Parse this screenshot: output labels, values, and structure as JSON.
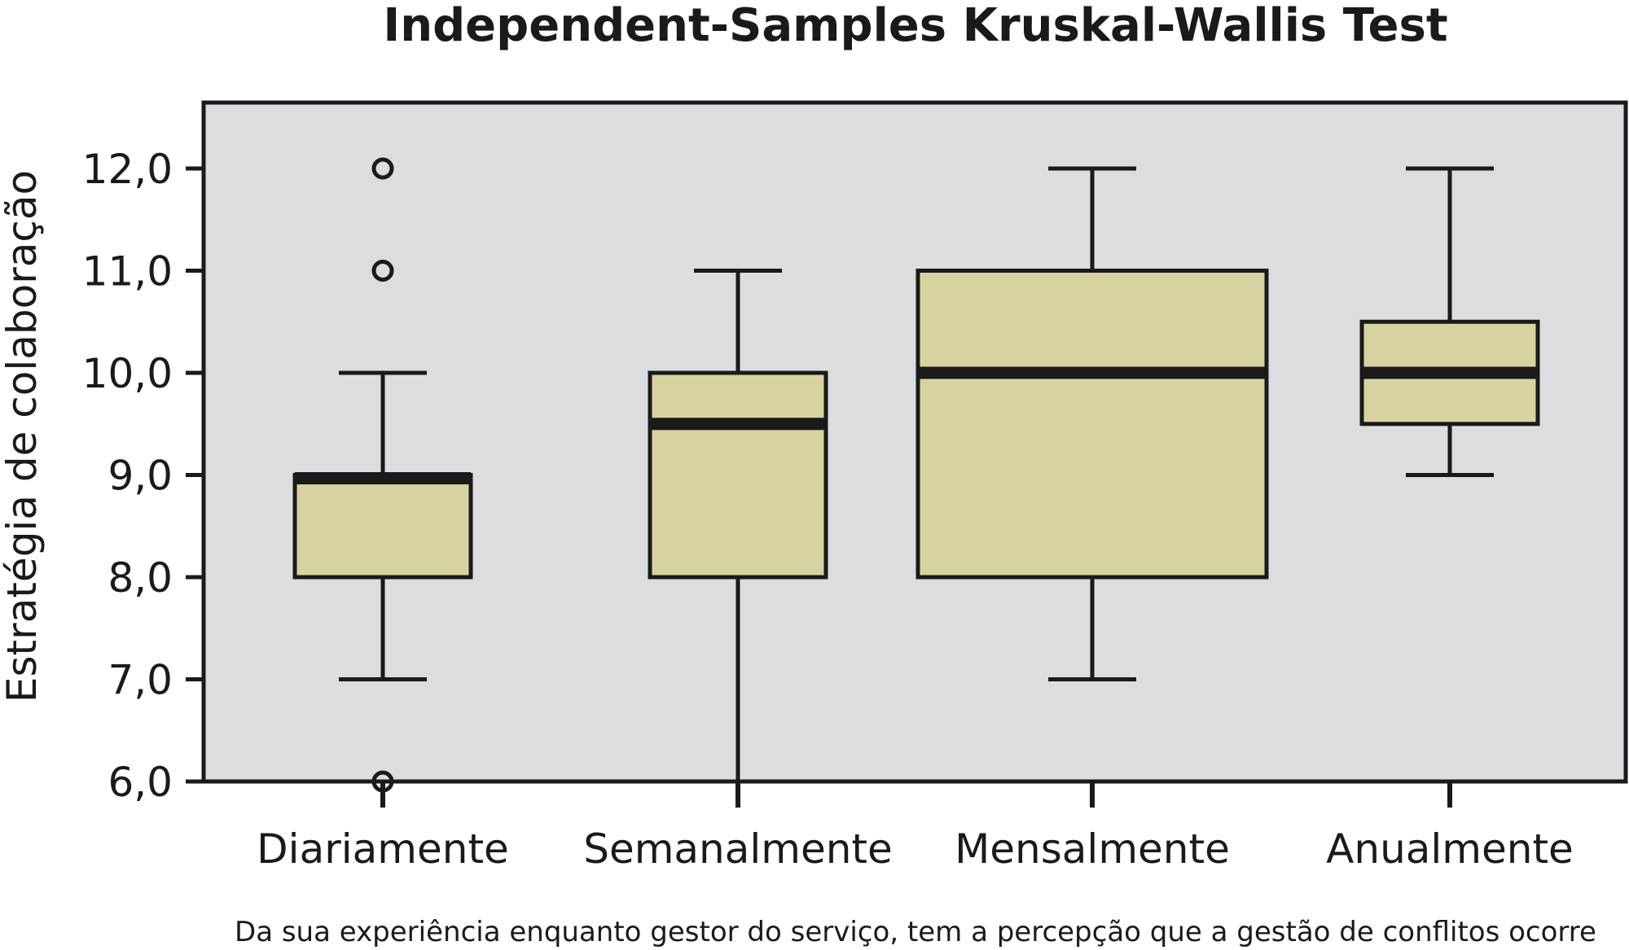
{
  "chart_data": {
    "type": "boxplot",
    "title": "Independent-Samples Kruskal-Wallis Test",
    "xlabel": "Da sua experiência enquanto gestor do serviço, tem a percepção que a gestão de conflitos ocorre",
    "ylabel": "Estratégia de colaboração",
    "ylim": [
      6.0,
      12.7
    ],
    "yticks": [
      "6,0",
      "7,0",
      "8,0",
      "9,0",
      "10,0",
      "11,0",
      "12,0"
    ],
    "ytick_values": [
      6,
      7,
      8,
      9,
      10,
      11,
      12
    ],
    "grid": false,
    "categories": [
      "Diariamente",
      "Semanalmente",
      "Mensalmente",
      "Anualmente"
    ],
    "boxes": [
      {
        "min": 7.0,
        "q1": 8.0,
        "median": 9.0,
        "q3": 9.0,
        "max": 10.0,
        "outliers": [
          12.0,
          11.0,
          6.0
        ]
      },
      {
        "min": 6.0,
        "q1": 8.0,
        "median": 9.5,
        "q3": 10.0,
        "max": 11.0,
        "outliers": []
      },
      {
        "min": 7.0,
        "q1": 8.0,
        "median": 10.0,
        "q3": 11.0,
        "max": 12.0,
        "outliers": []
      },
      {
        "min": 9.0,
        "q1": 9.5,
        "median": 10.0,
        "q3": 10.5,
        "max": 12.0,
        "outliers": []
      }
    ],
    "colors": {
      "box_fill": "#d6d3a0",
      "plot_background": "#dcdde0",
      "stroke": "#1a1a1a"
    }
  }
}
